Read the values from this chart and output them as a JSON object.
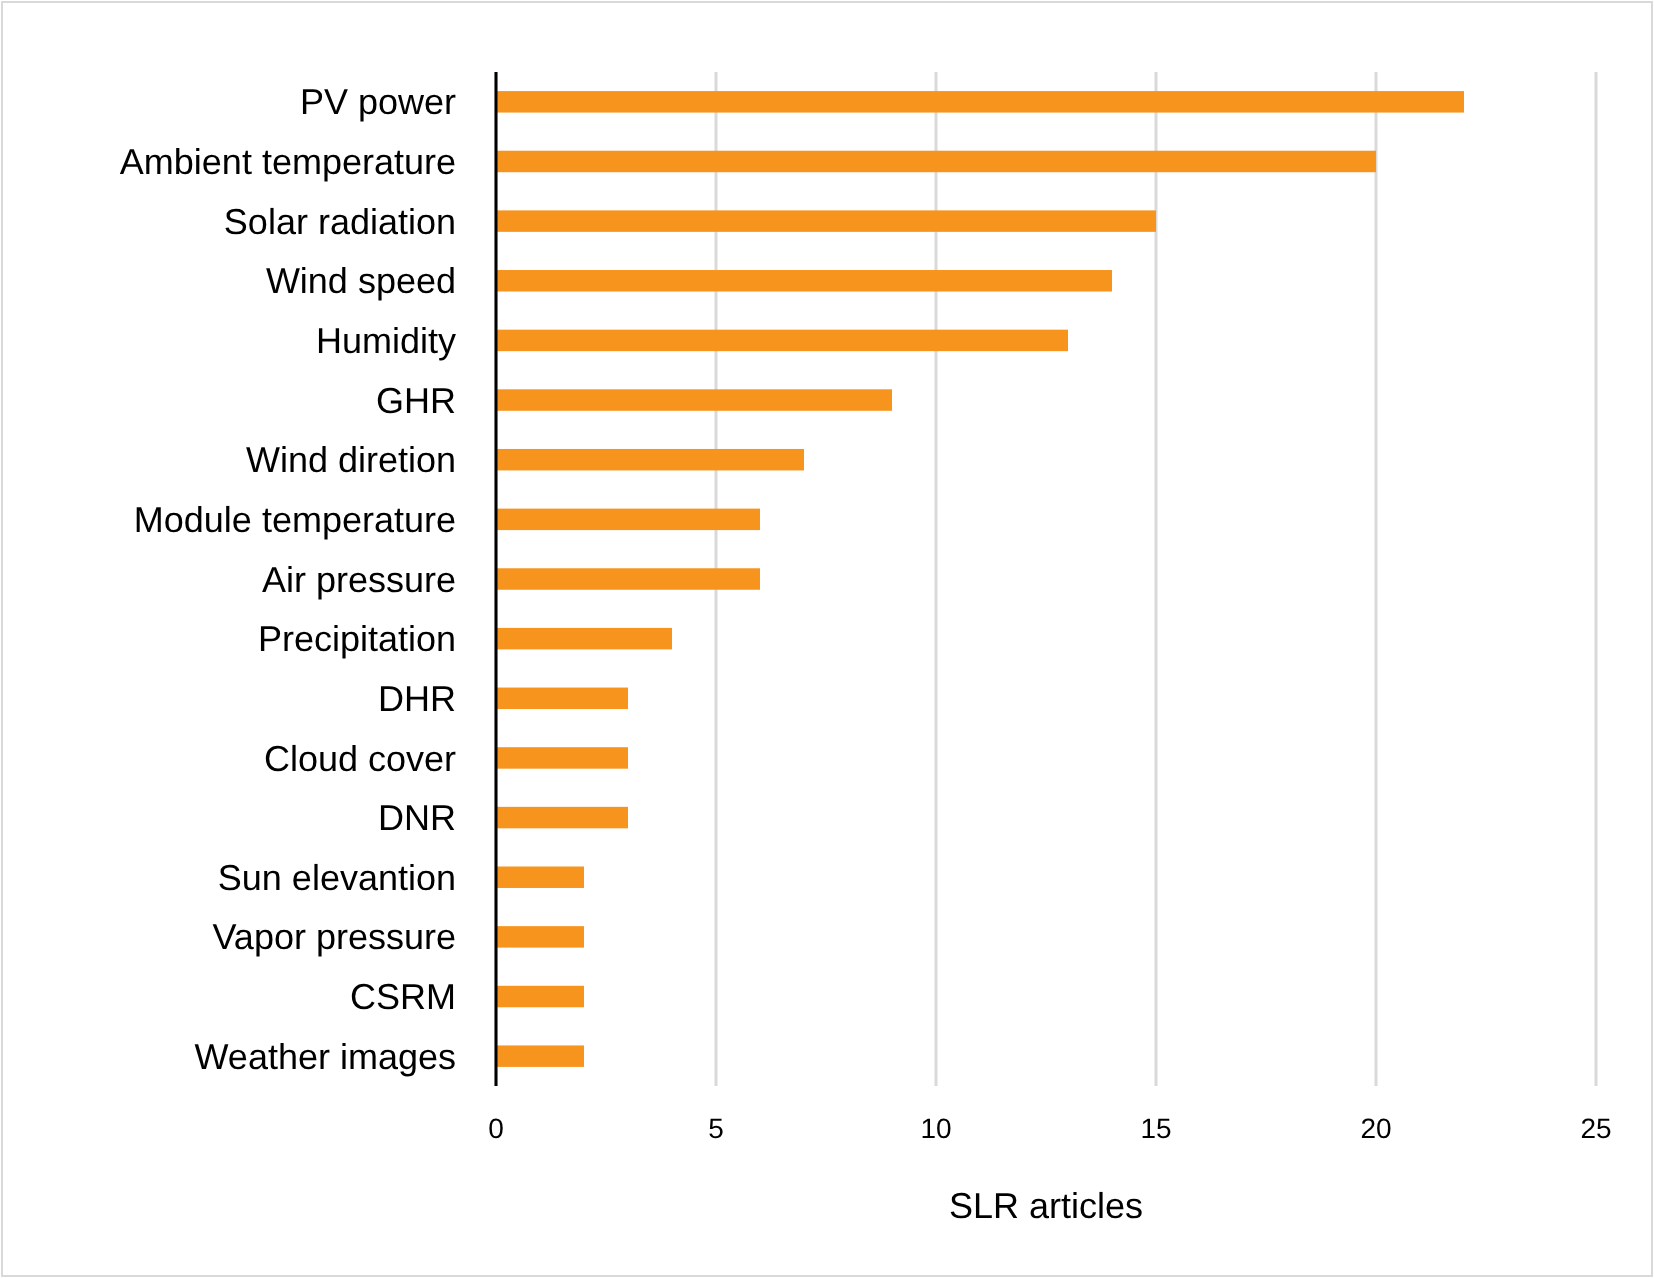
{
  "chart_data": {
    "type": "bar",
    "orientation": "horizontal",
    "xlabel": "SLR articles",
    "categories": [
      "PV power",
      "Ambient temperature",
      "Solar radiation",
      "Wind speed",
      "Humidity",
      "GHR",
      "Wind diretion",
      "Module temperature",
      "Air pressure",
      "Precipitation",
      "DHR",
      "Cloud cover",
      "DNR",
      "Sun elevantion",
      "Vapor pressure",
      "CSRM",
      "Weather images"
    ],
    "values": [
      22,
      20,
      15,
      14,
      13,
      9,
      7,
      6,
      6,
      4,
      3,
      3,
      3,
      2,
      2,
      2,
      2
    ],
    "color": "#f7941d",
    "xlim": [
      0,
      25
    ],
    "xticks": [
      0,
      5,
      10,
      15,
      20,
      25
    ],
    "grid": "x"
  }
}
